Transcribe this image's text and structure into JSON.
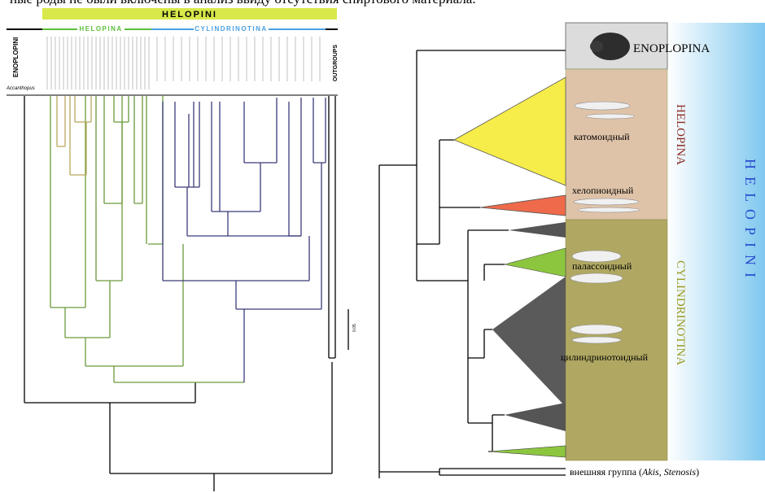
{
  "caption": "ные роды не были включены в анализ ввиду отсутствия спиртового материала.",
  "left_tree": {
    "tribe": "HELOPINI",
    "subtribe_1": "HELOPINA",
    "subtribe_2": "CYLINDRINOTINA",
    "sister_tribe": "ENOPLOPINI",
    "outgroups": "OUTGROUPS",
    "outgroup_taxon": "Accanthopus",
    "scale": "0.05"
  },
  "right_tree": {
    "clade_1": "ENOPLOPINA",
    "clade_2": "HELOPINA",
    "clade_3": "CYLINDRINOTINA",
    "tribe": "HELOPINI",
    "morphotypes": [
      "катомоидный",
      "хелопиоидный",
      "палассоидный",
      "цилиндринотоидный"
    ],
    "outgroup": {
      "prefix": "внешняя группа (",
      "taxon_1": "Akis",
      "sep": ", ",
      "taxon_2": "Stenosis",
      "suffix": ")"
    }
  }
}
